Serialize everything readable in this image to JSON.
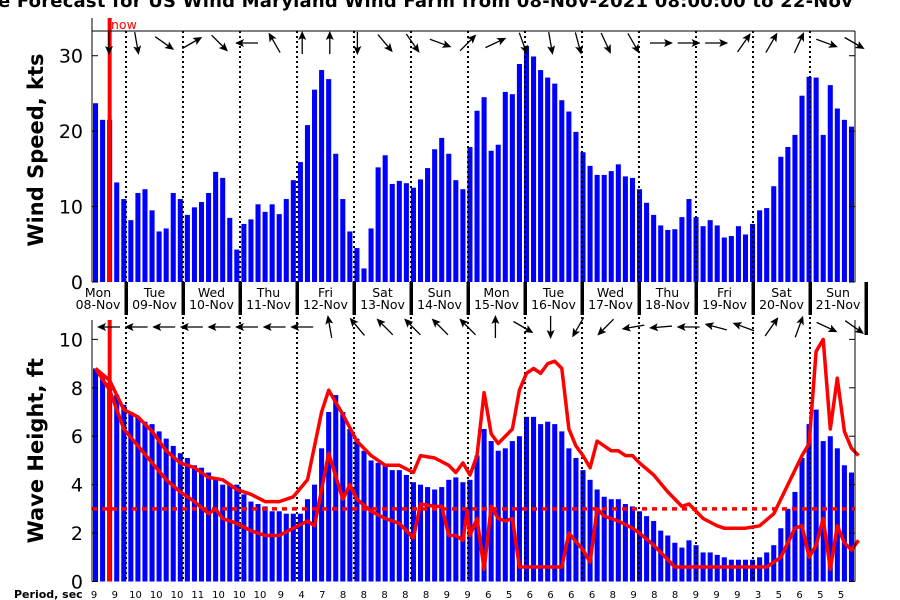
{
  "title": "e Forecast for US Wind Maryland Wind Farm from 08-Nov-2021 08:00:00 to 22-Nov",
  "now_label": "now",
  "colors": {
    "bars": "#0000ff",
    "now_line": "#ff0000",
    "wave_lines": "#ff0000",
    "threshold": "#ff0000",
    "arrows": "#000000"
  },
  "days": [
    {
      "dow": "Mon",
      "date": "08-Nov"
    },
    {
      "dow": "Tue",
      "date": "09-Nov"
    },
    {
      "dow": "Wed",
      "date": "10-Nov"
    },
    {
      "dow": "Thu",
      "date": "11-Nov"
    },
    {
      "dow": "Fri",
      "date": "12-Nov"
    },
    {
      "dow": "Sat",
      "date": "13-Nov"
    },
    {
      "dow": "Sun",
      "date": "14-Nov"
    },
    {
      "dow": "Mon",
      "date": "15-Nov"
    },
    {
      "dow": "Tue",
      "date": "16-Nov"
    },
    {
      "dow": "Wed",
      "date": "17-Nov"
    },
    {
      "dow": "Thu",
      "date": "18-Nov"
    },
    {
      "dow": "Fri",
      "date": "19-Nov"
    },
    {
      "dow": "Sat",
      "date": "20-Nov"
    },
    {
      "dow": "Sun",
      "date": "21-Nov"
    }
  ],
  "period_label": "Period, sec",
  "periods": [
    "9",
    "9",
    "10",
    "10",
    "10",
    "11",
    "10",
    "10",
    "10",
    "9",
    "4",
    "7",
    "8",
    "8",
    "8",
    "8",
    "8",
    "9",
    "9",
    "6",
    "5",
    "6",
    "6",
    "6",
    "6",
    "8",
    "9",
    "8",
    "8",
    "9",
    "9",
    "9",
    "3",
    "5",
    "6",
    "5",
    "5"
  ],
  "chart_data": [
    {
      "type": "bar",
      "title": "Wind Speed",
      "ylabel": "Wind Speed, kts",
      "ylim": [
        0,
        35
      ],
      "yticks": [
        "0",
        "10",
        "20",
        "30"
      ],
      "now_index": 2,
      "values": [
        23.7,
        21.5,
        21.5,
        13.2,
        11.0,
        8.2,
        11.8,
        12.3,
        9.5,
        6.7,
        7.1,
        11.8,
        11.0,
        8.9,
        9.9,
        10.6,
        11.8,
        14.6,
        13.8,
        8.5,
        4.3,
        7.7,
        8.3,
        10.3,
        9.3,
        10.3,
        9.0,
        11.0,
        13.5,
        15.9,
        20.8,
        25.5,
        28.1,
        26.9,
        17.0,
        11.0,
        6.7,
        4.5,
        1.8,
        7.1,
        15.2,
        16.8,
        13.0,
        13.4,
        13.1,
        12.5,
        13.6,
        15.1,
        17.6,
        19.1,
        17.0,
        13.5,
        12.3,
        17.9,
        22.7,
        24.5,
        17.4,
        18.2,
        25.2,
        24.9,
        28.9,
        31.3,
        29.9,
        28.1,
        27.1,
        26.3,
        24.1,
        22.6,
        19.9,
        17.2,
        15.4,
        14.2,
        14.2,
        14.7,
        15.6,
        14.0,
        13.8,
        12.3,
        10.5,
        8.9,
        7.5,
        6.9,
        7.0,
        8.6,
        11.0,
        8.6,
        7.4,
        8.2,
        7.5,
        5.9,
        6.1,
        7.4,
        6.3,
        7.7,
        9.5,
        9.8,
        12.7,
        16.6,
        17.9,
        19.5,
        24.7,
        27.2,
        27.1,
        19.5,
        26.1,
        23.0,
        21.5,
        20.6
      ],
      "direction_arrows_deg": [
        180,
        170,
        125,
        60,
        135,
        270,
        330,
        0,
        0,
        180,
        140,
        145,
        110,
        45,
        65,
        160,
        170,
        165,
        155,
        150,
        90,
        90,
        90,
        35,
        30,
        25,
        110,
        120
      ]
    },
    {
      "type": "bar",
      "title": "Wave Height",
      "ylabel": "Wave Height, ft",
      "ylim": [
        0,
        10.8
      ],
      "yticks": [
        "0",
        "2",
        "4",
        "6",
        "8",
        "10"
      ],
      "threshold": 3,
      "now_index": 2,
      "values": [
        8.8,
        8.5,
        8.2,
        7.7,
        7.3,
        7.0,
        6.8,
        6.6,
        6.5,
        6.2,
        5.9,
        5.6,
        5.3,
        5.1,
        4.8,
        4.7,
        4.5,
        4.3,
        4.0,
        4.0,
        4.0,
        3.6,
        3.3,
        3.2,
        3.1,
        2.9,
        2.9,
        2.8,
        2.8,
        2.8,
        3.4,
        4.0,
        5.5,
        7.0,
        7.7,
        7.0,
        6.3,
        5.9,
        5.4,
        5.0,
        4.9,
        4.8,
        4.6,
        4.6,
        4.4,
        4.1,
        4.0,
        3.9,
        3.8,
        3.9,
        4.2,
        4.3,
        4.1,
        4.2,
        5.2,
        6.3,
        5.8,
        5.4,
        5.5,
        5.8,
        6.0,
        6.8,
        6.8,
        6.5,
        6.6,
        6.5,
        6.2,
        5.5,
        5.1,
        4.6,
        4.2,
        3.8,
        3.5,
        3.4,
        3.4,
        3.2,
        3.1,
        2.9,
        2.7,
        2.5,
        2.1,
        1.9,
        1.6,
        1.4,
        1.7,
        1.5,
        1.2,
        1.2,
        1.1,
        1.0,
        0.9,
        0.9,
        0.9,
        0.9,
        1.0,
        1.2,
        1.5,
        2.2,
        3.0,
        3.7,
        5.1,
        6.5,
        7.1,
        5.8,
        6.0,
        5.5,
        4.8,
        4.5
      ],
      "series": [
        {
          "name": "upper",
          "points": [
            [
              0,
              8.8
            ],
            [
              2,
              8.3
            ],
            [
              4,
              7.1
            ],
            [
              6,
              6.8
            ],
            [
              8,
              6.2
            ],
            [
              10,
              5.4
            ],
            [
              12,
              4.9
            ],
            [
              14,
              4.7
            ],
            [
              16,
              4.3
            ],
            [
              18,
              4.2
            ],
            [
              20,
              3.8
            ],
            [
              22,
              3.6
            ],
            [
              24,
              3.3
            ],
            [
              26,
              3.3
            ],
            [
              28,
              3.5
            ],
            [
              30,
              4.2
            ],
            [
              32,
              7.0
            ],
            [
              33,
              7.9
            ],
            [
              35,
              6.9
            ],
            [
              37,
              5.8
            ],
            [
              39,
              5.2
            ],
            [
              41,
              4.8
            ],
            [
              43,
              4.8
            ],
            [
              45,
              4.5
            ],
            [
              46,
              5.2
            ],
            [
              48,
              5.1
            ],
            [
              50,
              4.8
            ],
            [
              51,
              4.5
            ],
            [
              52,
              4.9
            ],
            [
              53,
              4.4
            ],
            [
              54,
              5.2
            ],
            [
              55,
              7.8
            ],
            [
              56,
              6.1
            ],
            [
              57,
              5.7
            ],
            [
              59,
              6.3
            ],
            [
              60,
              7.9
            ],
            [
              61,
              8.6
            ],
            [
              62,
              8.8
            ],
            [
              63,
              8.6
            ],
            [
              64,
              9.0
            ],
            [
              65,
              9.1
            ],
            [
              66,
              8.8
            ],
            [
              67,
              6.3
            ],
            [
              68,
              5.6
            ],
            [
              69,
              5.2
            ],
            [
              70,
              4.7
            ],
            [
              71,
              5.8
            ],
            [
              72,
              5.6
            ],
            [
              73,
              5.4
            ],
            [
              74,
              5.4
            ],
            [
              75,
              5.2
            ],
            [
              76,
              5.2
            ],
            [
              77,
              4.9
            ],
            [
              79,
              4.4
            ],
            [
              81,
              3.7
            ],
            [
              83,
              3.1
            ],
            [
              84,
              3.2
            ],
            [
              86,
              2.6
            ],
            [
              88,
              2.3
            ],
            [
              89,
              2.2
            ],
            [
              90,
              2.2
            ],
            [
              92,
              2.2
            ],
            [
              94,
              2.3
            ],
            [
              96,
              2.8
            ],
            [
              98,
              4.0
            ],
            [
              100,
              5.2
            ],
            [
              101,
              5.7
            ],
            [
              102,
              9.5
            ],
            [
              103,
              10.0
            ],
            [
              104,
              6.3
            ],
            [
              105,
              8.4
            ],
            [
              106,
              6.2
            ],
            [
              107,
              5.5
            ],
            [
              108,
              5.2
            ]
          ]
        },
        {
          "name": "lower",
          "points": [
            [
              0,
              8.8
            ],
            [
              2,
              7.9
            ],
            [
              4,
              6.3
            ],
            [
              6,
              5.6
            ],
            [
              8,
              4.9
            ],
            [
              10,
              4.2
            ],
            [
              12,
              3.7
            ],
            [
              14,
              3.3
            ],
            [
              16,
              2.8
            ],
            [
              17,
              3.0
            ],
            [
              18,
              2.6
            ],
            [
              20,
              2.4
            ],
            [
              22,
              2.1
            ],
            [
              24,
              1.9
            ],
            [
              26,
              1.9
            ],
            [
              28,
              2.2
            ],
            [
              30,
              2.5
            ],
            [
              31,
              2.3
            ],
            [
              33,
              5.3
            ],
            [
              35,
              3.4
            ],
            [
              36,
              4.0
            ],
            [
              37,
              3.4
            ],
            [
              39,
              2.9
            ],
            [
              41,
              2.6
            ],
            [
              43,
              2.4
            ],
            [
              45,
              1.8
            ],
            [
              46,
              3.2
            ],
            [
              48,
              3.1
            ],
            [
              49,
              3.1
            ],
            [
              50,
              1.9
            ],
            [
              51,
              1.9
            ],
            [
              52,
              1.7
            ],
            [
              52.6,
              2.9
            ],
            [
              53,
              1.9
            ],
            [
              54,
              2.6
            ],
            [
              55,
              0.5
            ],
            [
              56,
              3.1
            ],
            [
              57,
              2.6
            ],
            [
              58,
              2.5
            ],
            [
              59,
              2.6
            ],
            [
              60,
              0.6
            ],
            [
              66,
              0.6
            ],
            [
              67,
              2.0
            ],
            [
              69,
              1.3
            ],
            [
              70,
              0.8
            ],
            [
              71,
              3.0
            ],
            [
              72,
              2.7
            ],
            [
              74,
              2.5
            ],
            [
              76,
              2.2
            ],
            [
              77,
              2.0
            ],
            [
              79,
              1.5
            ],
            [
              81,
              0.9
            ],
            [
              82,
              0.6
            ],
            [
              95,
              0.6
            ],
            [
              97,
              1.0
            ],
            [
              99,
              2.2
            ],
            [
              100,
              2.3
            ],
            [
              101,
              1.0
            ],
            [
              102,
              1.5
            ],
            [
              103,
              2.6
            ],
            [
              104,
              0.5
            ],
            [
              105,
              2.3
            ],
            [
              106,
              1.6
            ],
            [
              107,
              1.3
            ],
            [
              108,
              1.7
            ]
          ]
        }
      ],
      "direction_arrows_deg": [
        270,
        270,
        270,
        270,
        270,
        270,
        270,
        270,
        350,
        320,
        315,
        315,
        315,
        315,
        0,
        120,
        180,
        210,
        225,
        260,
        265,
        270,
        285,
        290,
        35,
        20,
        115,
        125
      ]
    }
  ]
}
